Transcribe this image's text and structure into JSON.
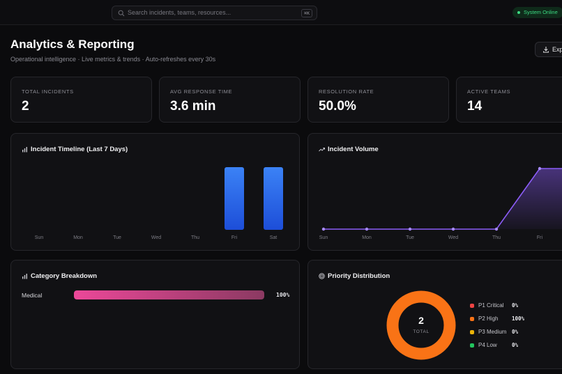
{
  "search": {
    "placeholder": "Search incidents, teams, resources...",
    "shortcut": "⌘K"
  },
  "status": {
    "label": "System Online",
    "color": "#3ddc84"
  },
  "header": {
    "title": "Analytics & Reporting",
    "subtitle": "Operational intelligence · Live metrics & trends · Auto-refreshes every 30s",
    "export_label": "Exp"
  },
  "stats": [
    {
      "label": "TOTAL INCIDENTS",
      "value": "2"
    },
    {
      "label": "AVG RESPONSE TIME",
      "value": "3.6 min"
    },
    {
      "label": "RESOLUTION RATE",
      "value": "50.0%"
    },
    {
      "label": "ACTIVE TEAMS",
      "value": "14"
    }
  ],
  "timeline": {
    "title": "Incident Timeline (Last 7 Days)",
    "icon": "bar-chart-icon",
    "bar_color": "#3b82f6"
  },
  "volume": {
    "title": "Incident Volume",
    "icon": "trending-up-icon",
    "line_color": "#8b5cf6"
  },
  "category": {
    "title": "Category Breakdown",
    "icon": "bar-chart-icon",
    "items": [
      {
        "label": "Medical",
        "percent": "100%",
        "fraction": 1.0
      }
    ]
  },
  "priority": {
    "title": "Priority Distribution",
    "icon": "target-icon",
    "total": "2",
    "total_label": "TOTAL",
    "legend": [
      {
        "name": "P1 Critical",
        "value": "0%",
        "color": "#ef4444"
      },
      {
        "name": "P2 High",
        "value": "100%",
        "color": "#f97316"
      },
      {
        "name": "P3 Medium",
        "value": "0%",
        "color": "#eab308"
      },
      {
        "name": "P4 Low",
        "value": "0%",
        "color": "#22c55e"
      }
    ]
  },
  "chart_data": [
    {
      "type": "bar",
      "categories": [
        "Sun",
        "Mon",
        "Tue",
        "Wed",
        "Thu",
        "Fri",
        "Sat"
      ],
      "values": [
        0,
        0,
        0,
        0,
        0,
        1,
        1
      ],
      "title": "Incident Timeline (Last 7 Days)",
      "xlabel": "",
      "ylabel": "",
      "grid": false
    },
    {
      "type": "area",
      "categories": [
        "Sun",
        "Mon",
        "Tue",
        "Wed",
        "Thu",
        "Fri"
      ],
      "values": [
        0,
        0,
        0,
        0,
        0,
        1
      ],
      "title": "Incident Volume",
      "xlabel": "",
      "ylabel": "",
      "grid": false
    }
  ]
}
